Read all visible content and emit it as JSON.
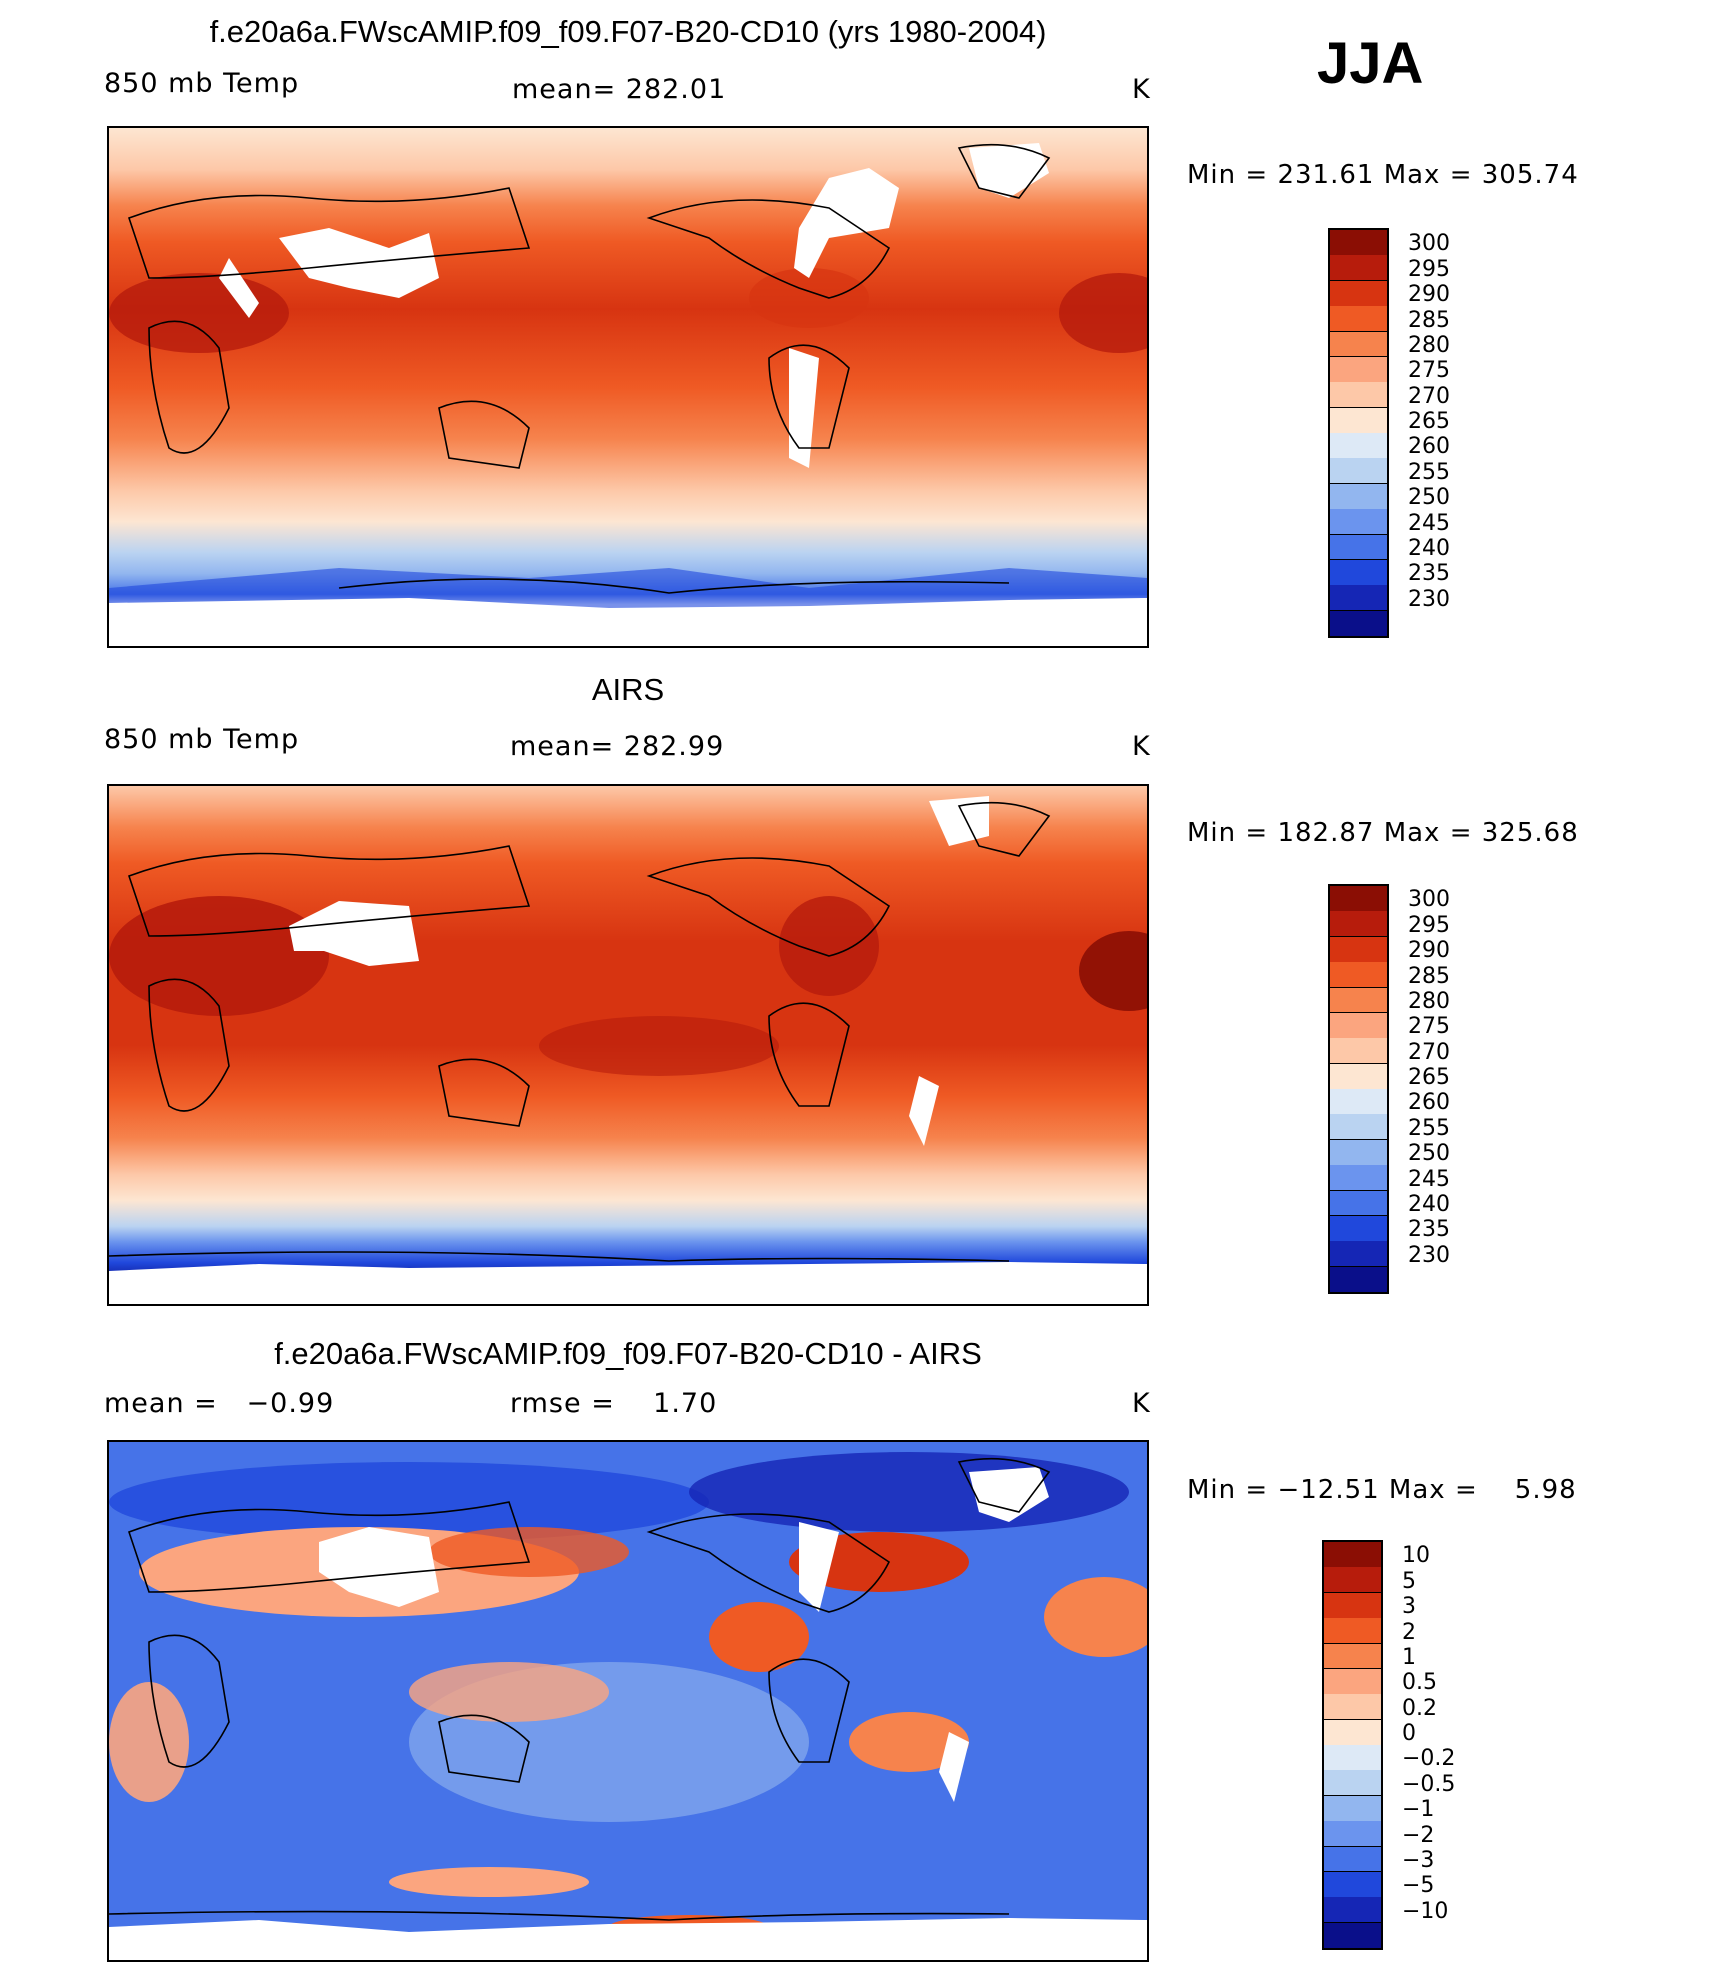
{
  "season": "JJA",
  "panels": [
    {
      "title": "f.e20a6a.FWscAMIP.f09_f09.F07-B20-CD10 (yrs 1980-2004)",
      "left_label": "850 mb Temp",
      "center_label": "mean= 282.01",
      "units": "K",
      "minmax": "Min = 231.61 Max = 305.74"
    },
    {
      "title": "AIRS",
      "left_label": "850 mb Temp",
      "center_label": "mean= 282.99",
      "units": "K",
      "minmax": "Min = 182.87 Max = 325.68"
    },
    {
      "title": "f.e20a6a.FWscAMIP.f09_f09.F07-B20-CD10 - AIRS",
      "left_label": "mean =   −0.99",
      "center_label": "rmse =    1.70",
      "units": "K",
      "minmax": "Min = −12.51 Max =    5.98"
    }
  ],
  "colorbar_temp": {
    "labels": [
      "300",
      "295",
      "290",
      "285",
      "280",
      "275",
      "270",
      "265",
      "260",
      "255",
      "250",
      "245",
      "240",
      "235",
      "230"
    ],
    "colors": [
      "#8b0e04",
      "#b71c0c",
      "#d73411",
      "#ef5a24",
      "#f6834d",
      "#fba57f",
      "#fdc8a8",
      "#fde6d2",
      "#dde9f6",
      "#bad3f1",
      "#92b6ef",
      "#6b94ee",
      "#4673e8",
      "#2048dc",
      "#1526b5",
      "#0a0f8a"
    ]
  },
  "colorbar_diff": {
    "labels": [
      "10",
      "5",
      "3",
      "2",
      "1",
      "0.5",
      "0.2",
      "0",
      "−0.2",
      "−0.5",
      "−1",
      "−2",
      "−3",
      "−5",
      "−10"
    ],
    "colors": [
      "#8b0e04",
      "#b71c0c",
      "#d73411",
      "#ef5a24",
      "#f6834d",
      "#fba57f",
      "#fdc8a8",
      "#fde6d2",
      "#dde9f6",
      "#bad3f1",
      "#92b6ef",
      "#6b94ee",
      "#4673e8",
      "#2048dc",
      "#1526b5",
      "#0a0f8a"
    ]
  }
}
